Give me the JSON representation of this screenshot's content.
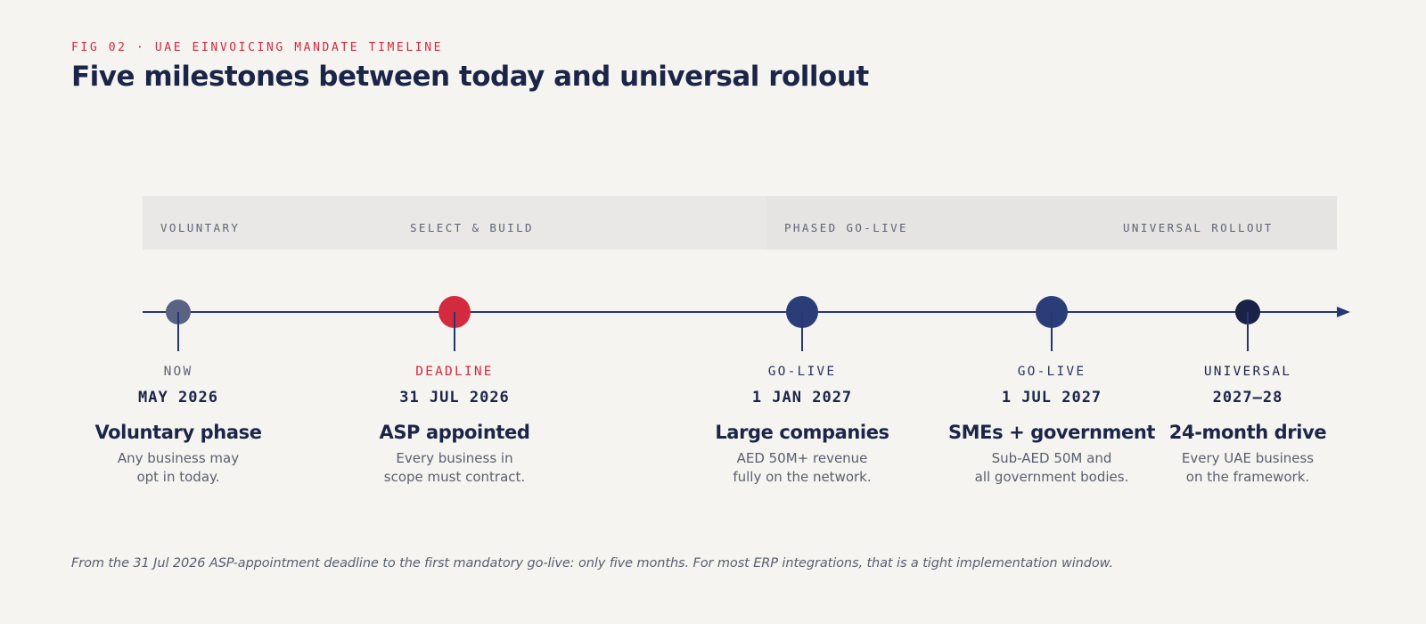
{
  "eyebrow": "FIG 02 · UAE EINVOICING MANDATE TIMELINE",
  "headline": "Five milestones between today and universal rollout",
  "colors": {
    "background": "#f5f4f1",
    "accent_red": "#d42a3e",
    "navy": "#1b2548",
    "axis": "#263673",
    "node_slate": "#5b6383",
    "node_navy": "#2b3d78",
    "node_dark": "#1a2247",
    "band_light": "#e9e8e6",
    "band_dark": "#e5e4e3"
  },
  "phases": [
    {
      "label": "VOLUNTARY"
    },
    {
      "label": "SELECT & BUILD"
    },
    {
      "label": "PHASED GO-LIVE"
    },
    {
      "label": "UNIVERSAL ROLLOUT"
    }
  ],
  "milestones": [
    {
      "kind": "NOW",
      "date": "MAY 2026",
      "title": "Voluntary phase",
      "desc": [
        "Any business may",
        "opt in today."
      ],
      "kind_color": "#5f6477",
      "node_color": "#5b6383"
    },
    {
      "kind": "DEADLINE",
      "date": "31 JUL 2026",
      "title": "ASP appointed",
      "desc": [
        "Every business in",
        "scope must contract."
      ],
      "kind_color": "#d42a3e",
      "node_color": "#d42a3e"
    },
    {
      "kind": "GO-LIVE",
      "date": "1 JAN 2027",
      "title": "Large companies",
      "desc": [
        "AED 50M+ revenue",
        "fully on the network."
      ],
      "kind_color": "#2a3560",
      "node_color": "#2b3d78"
    },
    {
      "kind": "GO-LIVE",
      "date": "1 JUL 2027",
      "title": "SMEs + government",
      "desc": [
        "Sub-AED 50M and",
        "all government bodies."
      ],
      "kind_color": "#2a3560",
      "node_color": "#2b3d78"
    },
    {
      "kind": "UNIVERSAL",
      "date": "2027–28",
      "title": "24-month drive",
      "desc": [
        "Every UAE business",
        "on the framework."
      ],
      "kind_color": "#1b2548",
      "node_color": "#1a2247"
    }
  ],
  "footnote": "From the 31 Jul 2026 ASP-appointment deadline to the first mandatory go-live: only five months. For most ERP integrations, that is a tight implementation window."
}
